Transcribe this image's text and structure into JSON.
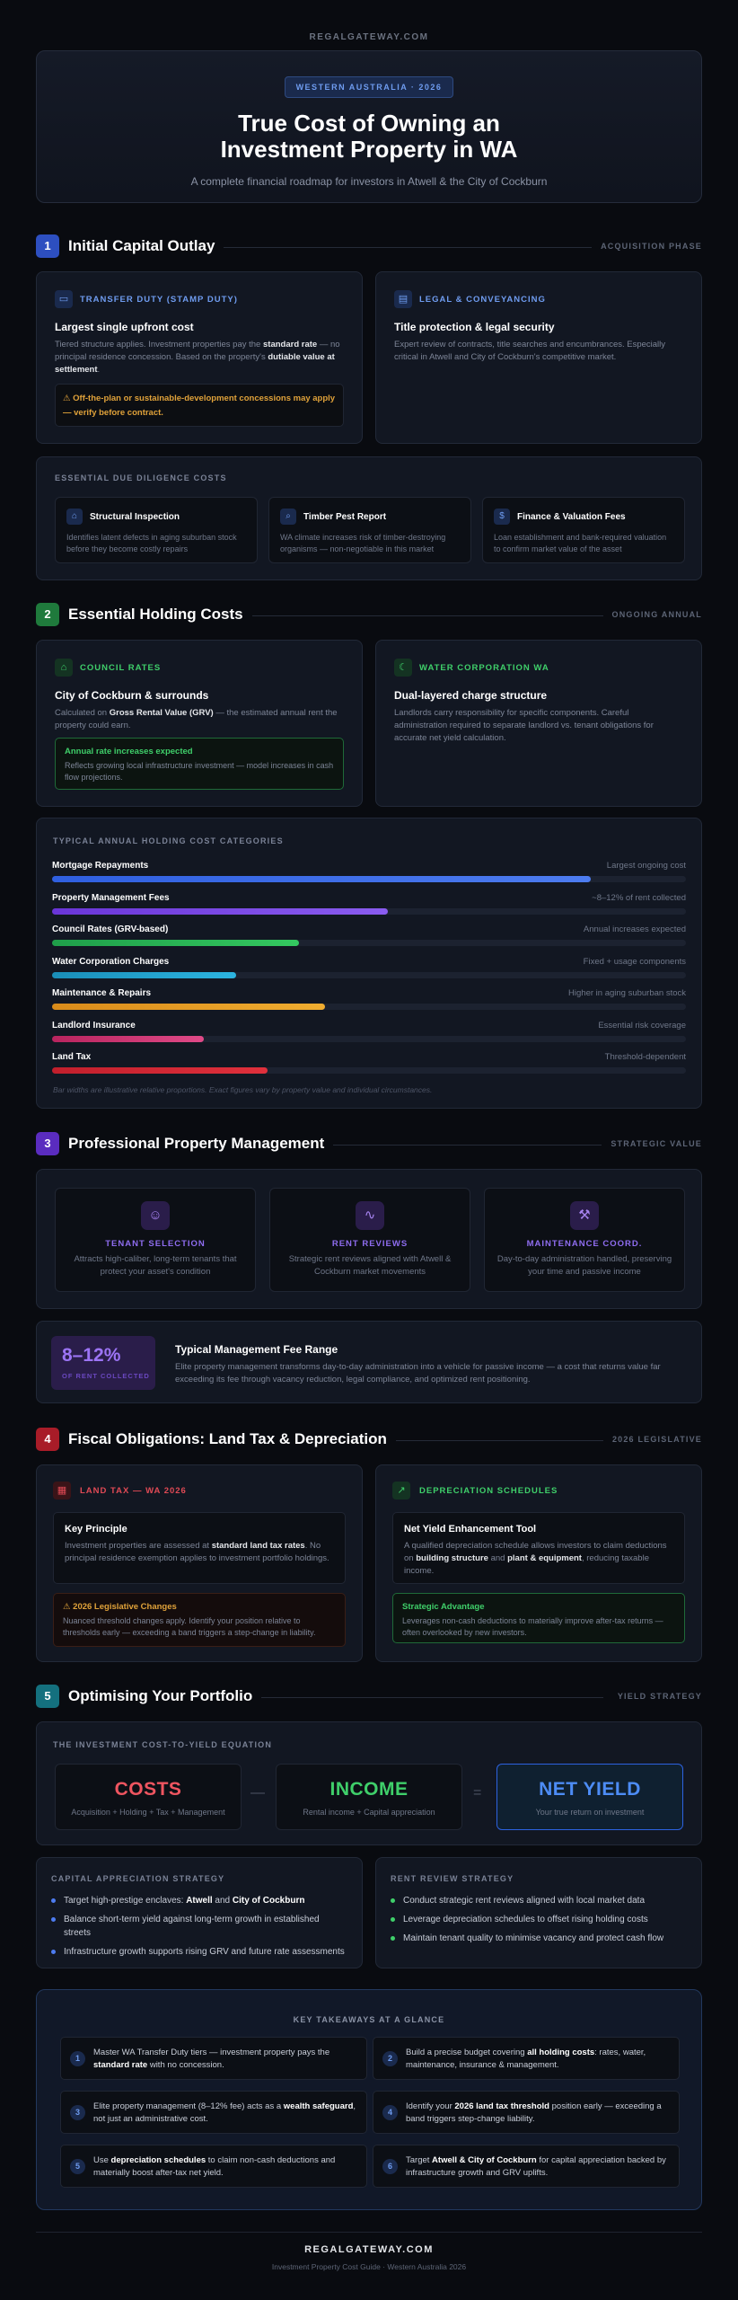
{
  "site": {
    "brand": "REGALGATEWAY.COM"
  },
  "hero": {
    "badge": "WESTERN AUSTRALIA · 2026",
    "title": "True Cost of Owning an\nInvestment Property in WA",
    "subtitle": "A complete financial roadmap for investors in Atwell & the City of Cockburn"
  },
  "s1": {
    "num": "1",
    "title": "Initial Capital Outlay",
    "tag": "ACQUISITION PHASE",
    "transfer": {
      "label": "TRANSFER DUTY (STAMP DUTY)",
      "heading": "Largest single upfront cost",
      "text_1": "Tiered structure applies. Investment properties pay the ",
      "text_b1": "standard rate",
      "text_2": " — no principal residence concession. Based on the property's ",
      "text_b2": "dutiable value at settlement",
      "text_3": ".",
      "note": "⚠ Off-the-plan or sustainable-development concessions may apply — verify before contract."
    },
    "legal": {
      "label": "LEGAL & CONVEYANCING",
      "heading": "Title protection & legal security",
      "text": "Expert review of contracts, title searches and encumbrances. Especially critical in Atwell and City of Cockburn's competitive market."
    },
    "diligence": {
      "label": "ESSENTIAL DUE DILIGENCE COSTS",
      "items": [
        {
          "title": "Structural Inspection",
          "text": "Identifies latent defects in aging suburban stock before they become costly repairs"
        },
        {
          "title": "Timber Pest Report",
          "text": "WA climate increases risk of timber-destroying organisms — non-negotiable in this market"
        },
        {
          "title": "Finance & Valuation Fees",
          "text": "Loan establishment and bank-required valuation to confirm market value of the asset"
        }
      ]
    }
  },
  "s2": {
    "num": "2",
    "title": "Essential Holding Costs",
    "tag": "ONGOING ANNUAL",
    "rates": {
      "label": "COUNCIL RATES",
      "heading": "City of Cockburn & surrounds",
      "text_1": "Calculated on ",
      "text_b1": "Gross Rental Value (GRV)",
      "text_2": " — the estimated annual rent the property could earn.",
      "note_title": "Annual rate increases expected",
      "note_text": "Reflects growing local infrastructure investment — model increases in cash flow projections."
    },
    "water": {
      "label": "WATER CORPORATION WA",
      "heading": "Dual-layered charge structure",
      "text": "Landlords carry responsibility for specific components. Careful administration required to separate landlord vs. tenant obligations for accurate net yield calculation."
    },
    "bars_label": "TYPICAL ANNUAL HOLDING COST CATEGORIES",
    "bars": [
      {
        "name": "Mortgage Repayments",
        "note": "Largest ongoing cost",
        "level": 0.85,
        "color_a": "#2f5fe0",
        "color_b": "#4d7cf0"
      },
      {
        "name": "Property Management Fees",
        "note": "~8–12% of rent collected",
        "level": 0.53,
        "color_a": "#6a35d8",
        "color_b": "#8a5cf0"
      },
      {
        "name": "Council Rates (GRV-based)",
        "note": "Annual increases expected",
        "level": 0.39,
        "color_a": "#1f9e4a",
        "color_b": "#34c860"
      },
      {
        "name": "Water Corporation Charges",
        "note": "Fixed + usage components",
        "level": 0.29,
        "color_a": "#1a8eb8",
        "color_b": "#2cb4e0"
      },
      {
        "name": "Maintenance & Repairs",
        "note": "Higher in aging suburban stock",
        "level": 0.43,
        "color_a": "#d98b1a",
        "color_b": "#f0ad30"
      },
      {
        "name": "Landlord Insurance",
        "note": "Essential risk coverage",
        "level": 0.24,
        "color_a": "#b8245e",
        "color_b": "#e04a88"
      },
      {
        "name": "Land Tax",
        "note": "Threshold-dependent",
        "level": 0.34,
        "color_a": "#c21f2c",
        "color_b": "#e0303c"
      }
    ],
    "bars_caption": "Bar widths are illustrative relative proportions. Exact figures vary by property value and individual circumstances."
  },
  "s3": {
    "num": "3",
    "title": "Professional Property Management",
    "tag": "STRATEGIC VALUE",
    "cards": [
      {
        "title": "TENANT SELECTION",
        "text": "Attracts high-caliber, long-term tenants that protect your asset's condition"
      },
      {
        "title": "RENT REVIEWS",
        "text": "Strategic rent reviews aligned with Atwell & Cockburn market movements"
      },
      {
        "title": "MAINTENANCE COORD.",
        "text": "Day-to-day administration handled, preserving your time and passive income"
      }
    ],
    "fee": {
      "pct": "8–12%",
      "pct_caption": "OF RENT COLLECTED",
      "heading": "Typical Management Fee Range",
      "text": "Elite property management transforms day-to-day administration into a vehicle for passive income — a cost that returns value far exceeding its fee through vacancy reduction, legal compliance, and optimized rent positioning."
    }
  },
  "s4": {
    "num": "4",
    "title": "Fiscal Obligations: Land Tax & Depreciation",
    "tag": "2026 LEGISLATIVE",
    "landtax": {
      "label": "LAND TAX — WA 2026",
      "heading": "Key Principle",
      "text_1": "Investment properties are assessed at ",
      "text_b1": "standard land tax rates",
      "text_2": ". No principal residence exemption applies to investment portfolio holdings.",
      "note_title": "⚠ 2026 Legislative Changes",
      "note_text": "Nuanced threshold changes apply. Identify your position relative to thresholds early — exceeding a band triggers a step-change in liability."
    },
    "depreciation": {
      "label": "DEPRECIATION SCHEDULES",
      "heading": "Net Yield Enhancement Tool",
      "text_1": "A qualified depreciation schedule allows investors to claim deductions on ",
      "text_b1": "building structure",
      "text_2": " and ",
      "text_b2": "plant & equipment",
      "text_3": ", reducing taxable income.",
      "note_title": "Strategic Advantage",
      "note_text": "Leverages non-cash deductions to materially improve after-tax returns — often overlooked by new investors."
    }
  },
  "s5": {
    "num": "5",
    "title": "Optimising Your Portfolio",
    "tag": "YIELD STRATEGY",
    "eq_label": "THE INVESTMENT COST-TO-YIELD EQUATION",
    "eq": [
      {
        "big": "COSTS",
        "small": "Acquisition + Holding + Tax + Management"
      },
      {
        "big": "INCOME",
        "small": "Rental income + Capital appreciation"
      },
      {
        "big": "NET YIELD",
        "small": "Your true return on investment"
      }
    ],
    "op_minus": "—",
    "op_equals": "=",
    "capital": {
      "label": "CAPITAL APPRECIATION STRATEGY",
      "items": [
        {
          "pre": "Target high-prestige enclaves: ",
          "b1": "Atwell",
          "mid": " and ",
          "b2": "City of Cockburn",
          "post": ""
        },
        {
          "pre": "Balance short-term yield against long-term growth in established streets",
          "b1": "",
          "mid": "",
          "b2": "",
          "post": ""
        },
        {
          "pre": "Infrastructure growth supports rising GRV and future rate assessments",
          "b1": "",
          "mid": "",
          "b2": "",
          "post": ""
        }
      ]
    },
    "rent": {
      "label": "RENT REVIEW STRATEGY",
      "items": [
        "Conduct strategic rent reviews aligned with local market data",
        "Leverage depreciation schedules to offset rising holding costs",
        "Maintain tenant quality to minimise vacancy and protect cash flow"
      ]
    }
  },
  "takeaways": {
    "label": "KEY TAKEAWAYS AT A GLANCE",
    "items": [
      {
        "n": "1",
        "pre": "Master WA Transfer Duty tiers — investment property pays the ",
        "b1": "standard rate",
        "mid": " with no concession.",
        "b2": "",
        "post": ""
      },
      {
        "n": "2",
        "pre": "Build a precise budget covering ",
        "b1": "all holding costs",
        "mid": ": rates, water, maintenance, insurance & management.",
        "b2": "",
        "post": ""
      },
      {
        "n": "3",
        "pre": "Elite property management (8–12% fee) acts as a ",
        "b1": "wealth safeguard",
        "mid": ", not just an administrative cost.",
        "b2": "",
        "post": ""
      },
      {
        "n": "4",
        "pre": "Identify your ",
        "b1": "2026 land tax threshold",
        "mid": " position early — exceeding a band triggers step-change liability.",
        "b2": "",
        "post": ""
      },
      {
        "n": "5",
        "pre": "Use ",
        "b1": "depreciation schedules",
        "mid": " to claim non-cash deductions and materially boost after-tax net yield.",
        "b2": "",
        "post": ""
      },
      {
        "n": "6",
        "pre": "Target ",
        "b1": "Atwell & City of Cockburn",
        "mid": " for capital appreciation backed by infrastructure growth and GRV uplifts.",
        "b2": "",
        "post": ""
      }
    ]
  },
  "footer": {
    "brand": "REGALGATEWAY.COM",
    "sub": "Investment Property Cost Guide · Western Australia 2026"
  },
  "colors": {
    "blue": "#2d62e0",
    "green": "#1f9e4a",
    "purple": "#6a35d8",
    "red": "#c21f2c",
    "teal": "#1a8090",
    "bg": "#090b10"
  },
  "icons": {
    "transfer": "card-icon",
    "legal": "document-icon",
    "structural": "house-icon",
    "pest": "search-icon",
    "finance": "dollar-icon",
    "rates": "house-icon",
    "water": "drop-icon",
    "tenant": "users-icon",
    "rent": "pulse-icon",
    "maintenance": "wrench-icon",
    "landtax": "calendar-icon",
    "depreciation": "trend-up-icon"
  }
}
